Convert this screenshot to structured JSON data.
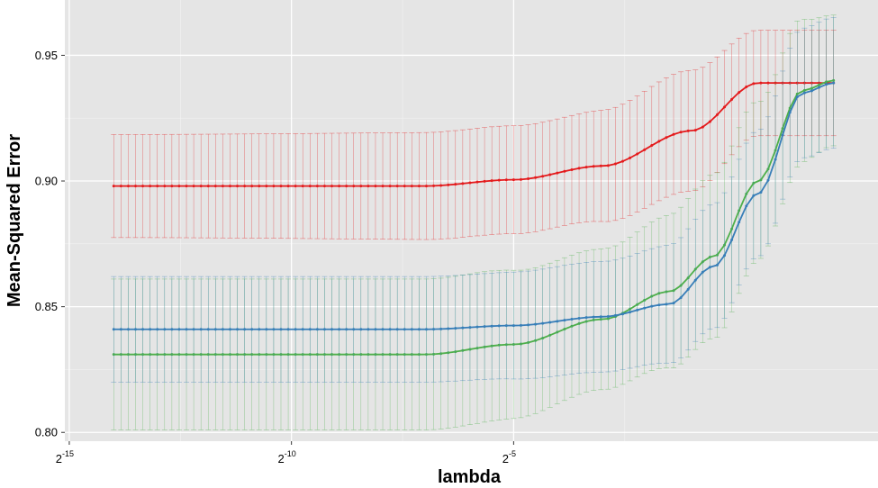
{
  "chart_data": {
    "type": "line",
    "xlabel": "lambda",
    "ylabel": "Mean-Squared Error",
    "x_scale": "log2",
    "xlim_exponent": [
      -15.1,
      3.2
    ],
    "ylim": [
      0.7965,
      0.972
    ],
    "grid": true,
    "legend": "none",
    "x_ticks": [
      {
        "base": "2",
        "exp": "-15",
        "value_exponent": -15
      },
      {
        "base": "2",
        "exp": "-10",
        "value_exponent": -10
      },
      {
        "base": "2",
        "exp": "-5",
        "value_exponent": -5
      }
    ],
    "y_ticks": [
      {
        "label": "0.80",
        "value": 0.8
      },
      {
        "label": "0.85",
        "value": 0.85
      },
      {
        "label": "0.90",
        "value": 0.9
      },
      {
        "label": "0.95",
        "value": 0.95
      }
    ],
    "x_exponents": {
      "start": -14,
      "end": 2.2,
      "count": 100
    },
    "series": [
      {
        "color": "#e41a1c",
        "anchors": [
          [
            -14,
            0.898
          ],
          [
            -7,
            0.898
          ],
          [
            -5,
            0.9005
          ],
          [
            -3,
            0.906
          ],
          [
            -1,
            0.92
          ],
          [
            0.5,
            0.939
          ],
          [
            2.2,
            0.939
          ]
        ],
        "se_anchors": [
          [
            -14,
            0.0205
          ],
          [
            -4,
            0.0215
          ],
          [
            -1,
            0.024
          ],
          [
            0.5,
            0.021
          ],
          [
            2.2,
            0.021
          ]
        ]
      },
      {
        "color": "#4daf4a",
        "anchors": [
          [
            -14,
            0.831
          ],
          [
            -7,
            0.831
          ],
          [
            -5,
            0.835
          ],
          [
            -3,
            0.845
          ],
          [
            -1.5,
            0.856
          ],
          [
            -0.5,
            0.87
          ],
          [
            0.5,
            0.9
          ],
          [
            1.5,
            0.936
          ],
          [
            2.2,
            0.94
          ]
        ],
        "se_anchors": [
          [
            -14,
            0.03
          ],
          [
            -6,
            0.03
          ],
          [
            -3,
            0.028
          ],
          [
            0,
            0.033
          ],
          [
            1.0,
            0.03
          ],
          [
            2.2,
            0.026
          ]
        ]
      },
      {
        "color": "#377eb8",
        "anchors": [
          [
            -14,
            0.841
          ],
          [
            -7,
            0.841
          ],
          [
            -5,
            0.8425
          ],
          [
            -3,
            0.846
          ],
          [
            -1.5,
            0.851
          ],
          [
            -0.5,
            0.866
          ],
          [
            0.5,
            0.895
          ],
          [
            1.5,
            0.935
          ],
          [
            2.2,
            0.939
          ]
        ],
        "se_anchors": [
          [
            -14,
            0.021
          ],
          [
            -6,
            0.021
          ],
          [
            -3,
            0.022
          ],
          [
            0,
            0.025
          ],
          [
            2.2,
            0.026
          ]
        ]
      }
    ]
  }
}
